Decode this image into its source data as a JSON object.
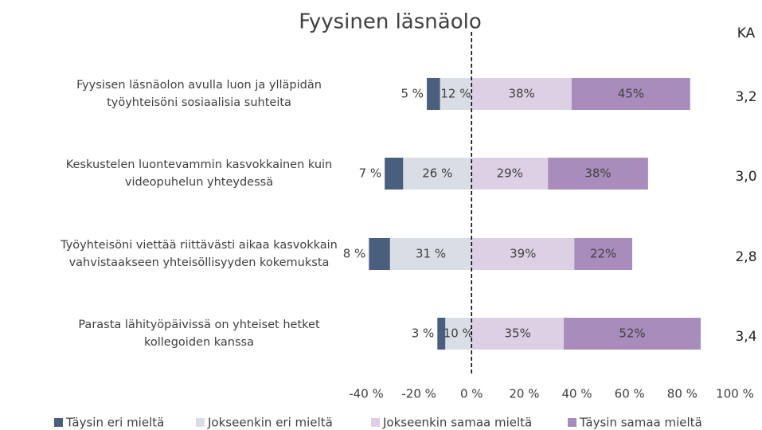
{
  "chart_data": {
    "type": "diverging_stacked_bar",
    "title": "Fyysinen läsnäolo",
    "categories": [
      [
        "Fyysisen läsnäolon avulla luon ja ylläpidän",
        "työyhteisöni sosiaalisia suhteita"
      ],
      [
        "Keskustelen luontevammin kasvokkainen kuin",
        "videopuhelun yhteydessä"
      ],
      [
        "Työyhteisöni viettää riittävästi aikaa kasvokkain",
        "vahvistaakseen yhteisöllisyyden kokemuksta"
      ],
      [
        "Parasta lähityöpäivissä on yhteiset hetket",
        "kollegoiden kanssa"
      ]
    ],
    "series": [
      {
        "name": "Täysin eri mieltä",
        "color": "#4a5f7e",
        "side": "negative",
        "values": [
          5,
          7,
          8,
          3
        ],
        "value_labels": [
          "5 %",
          "7 %",
          "8 %",
          "3 %"
        ]
      },
      {
        "name": "Jokseenkin eri mieltä",
        "color": "#d9dee6",
        "side": "negative",
        "values": [
          12,
          26,
          31,
          10
        ],
        "value_labels": [
          "12 %",
          "26 %",
          "31 %",
          "10 %"
        ]
      },
      {
        "name": "Jokseenkin samaa mieltä",
        "color": "#ddd0e4",
        "side": "positive",
        "values": [
          38,
          29,
          39,
          35
        ],
        "value_labels": [
          "38%",
          "29%",
          "39%",
          "35%"
        ]
      },
      {
        "name": "Täysin samaa mieltä",
        "color": "#a78cbc",
        "side": "positive",
        "values": [
          45,
          38,
          22,
          52
        ],
        "value_labels": [
          "45%",
          "38%",
          "22%",
          "52%"
        ]
      }
    ],
    "xlim": [
      -40,
      100
    ],
    "xticks": [
      {
        "value": -40,
        "label": "-40 %"
      },
      {
        "value": -20,
        "label": "-20 %"
      },
      {
        "value": 0,
        "label": "0 %"
      },
      {
        "value": 20,
        "label": "20 %"
      },
      {
        "value": 40,
        "label": "40 %"
      },
      {
        "value": 60,
        "label": "60 %"
      },
      {
        "value": 80,
        "label": "80 %"
      },
      {
        "value": 100,
        "label": "100 %"
      }
    ],
    "ka": {
      "title": "KA",
      "values": [
        3.2,
        3.0,
        2.8,
        3.4
      ],
      "value_labels": [
        "3,2",
        "3,0",
        "2,8",
        "3,4"
      ]
    }
  }
}
